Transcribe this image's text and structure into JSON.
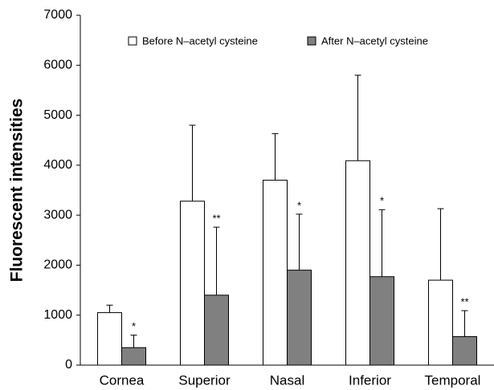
{
  "chart_data": {
    "type": "bar",
    "y_label": "Fluorescent intensities",
    "categories": [
      "Cornea",
      "Superior",
      "Nasal",
      "Inferior",
      "Temporal"
    ],
    "series": [
      {
        "name": "Before N–acetyl cysteine",
        "color": "#ffffff",
        "values": [
          1050,
          3280,
          3700,
          4090,
          1700
        ],
        "errors": [
          150,
          1520,
          930,
          1710,
          1430
        ]
      },
      {
        "name": "After N–acetyl cysteine",
        "color": "#808080",
        "values": [
          350,
          1400,
          1900,
          1770,
          570
        ],
        "errors": [
          250,
          1360,
          1120,
          1340,
          520
        ],
        "significance": [
          "*",
          "**",
          "*",
          "*",
          "**"
        ]
      }
    ],
    "ylim": [
      0,
      7000
    ],
    "yticks": [
      0,
      1000,
      2000,
      3000,
      4000,
      5000,
      6000,
      7000
    ],
    "grid": false
  }
}
